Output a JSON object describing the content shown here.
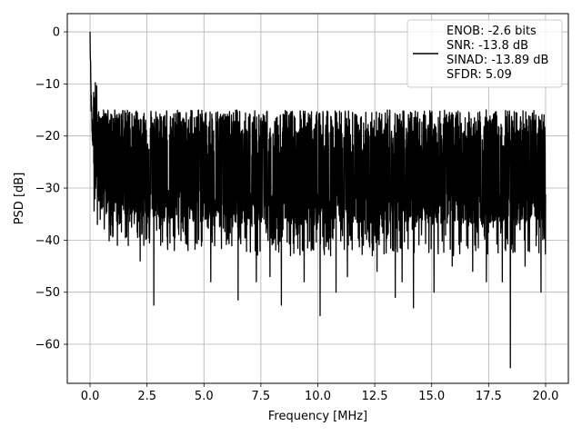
{
  "chart_data": {
    "type": "line",
    "title": "",
    "xlabel": "Frequency [MHz]",
    "ylabel": "PSD [dB]",
    "xlim": [
      -1.0,
      21.0
    ],
    "ylim": [
      -67.5,
      3.5
    ],
    "xticks": [
      0.0,
      2.5,
      5.0,
      7.5,
      10.0,
      12.5,
      15.0,
      17.5,
      20.0
    ],
    "xtick_labels": [
      "0.0",
      "2.5",
      "5.0",
      "7.5",
      "10.0",
      "12.5",
      "15.0",
      "17.5",
      "20.0"
    ],
    "yticks": [
      0,
      -10,
      -20,
      -30,
      -40,
      -50,
      -60
    ],
    "ytick_labels": [
      "0",
      "−10",
      "−20",
      "−30",
      "−40",
      "−50",
      "−60"
    ],
    "grid": true,
    "legend_position": "top-right",
    "line_color": "#000000",
    "series": [
      {
        "legend_lines": [
          "ENOB: -2.6 bits",
          "SNR: -13.8 dB",
          "SINAD: -13.89 dB",
          "SFDR: 5.09"
        ],
        "description_points": {
          "x": [
            0.0,
            0.02,
            0.05,
            0.08,
            0.12,
            0.2,
            0.3,
            0.5,
            1.0,
            2.0,
            3.0,
            5.0,
            7.5,
            10.0,
            12.5,
            15.0,
            17.5,
            20.0
          ],
          "y": [
            0.0,
            -8.0,
            -14.0,
            -18.0,
            -20.0,
            -22.0,
            -24.0,
            -26.0,
            -27.0,
            -27.5,
            -28.0,
            -28.5,
            -29.0,
            -29.0,
            -29.0,
            -29.0,
            -29.0,
            -29.0
          ]
        },
        "dips": {
          "x": [
            0.32,
            1.2,
            2.2,
            2.8,
            3.1,
            3.7,
            4.3,
            5.3,
            6.0,
            6.5,
            7.3,
            7.9,
            8.4,
            8.8,
            9.4,
            10.1,
            10.8,
            11.3,
            12.0,
            12.6,
            13.4,
            13.7,
            14.2,
            15.1,
            15.9,
            16.8,
            17.4,
            18.1,
            18.45,
            19.1,
            19.8
          ],
          "y": [
            -37,
            -41,
            -44,
            -52.5,
            -41,
            -42,
            -42,
            -48,
            -40,
            -51.5,
            -48,
            -47,
            -52.5,
            -43,
            -48,
            -54.5,
            -50,
            -47,
            -41,
            -46,
            -51,
            -48,
            -53,
            -50,
            -45,
            -46,
            -48,
            -48,
            -64.5,
            -45,
            -50
          ]
        }
      }
    ]
  }
}
